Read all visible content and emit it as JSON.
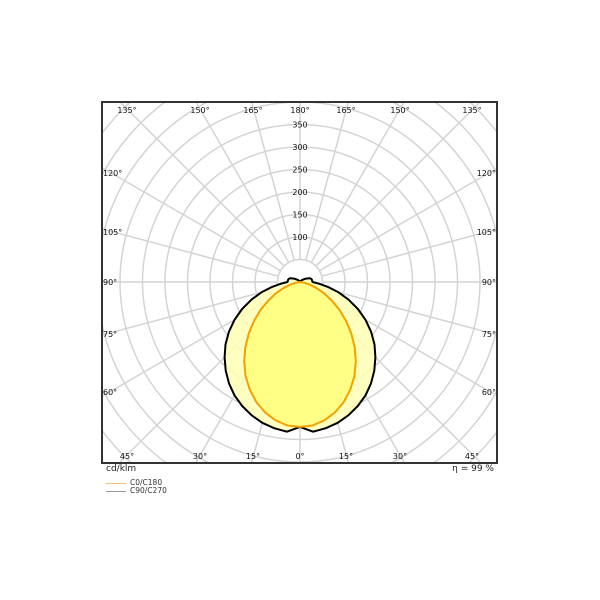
{
  "chart_data": {
    "type": "polar",
    "unit_label": "cd/klm",
    "efficiency_label": "η = 99 %",
    "radial_ticks": [
      100,
      150,
      200,
      250,
      300,
      350
    ],
    "radial_grid_step": 50,
    "angle_grid_step": 15,
    "angle_labels": {
      "bottom": [
        "45°",
        "30°",
        "15°",
        "0°",
        "15°",
        "30°",
        "45°"
      ],
      "sides": [
        "60°",
        "75°",
        "90°",
        "105°",
        "120°"
      ],
      "top": [
        "135°",
        "150°",
        "165°",
        "180°",
        "165°",
        "150°",
        "135°"
      ]
    },
    "series": [
      {
        "name": "C90/C270",
        "color": "#000000",
        "legend_color": "#999999",
        "fill": "#ffffb4",
        "angles": [
          0,
          5,
          10,
          15,
          20,
          25,
          30,
          35,
          40,
          45,
          50,
          55,
          60,
          65,
          70,
          75,
          80,
          85,
          90,
          95,
          100,
          105,
          110,
          120,
          135,
          150,
          165,
          180
        ],
        "values": [
          322,
          334,
          330,
          324,
          315,
          304,
          291,
          275,
          257,
          237,
          216,
          193,
          168,
          142,
          115,
          89,
          63,
          42,
          28,
          27,
          27,
          26,
          24,
          15,
          6,
          2,
          0,
          0
        ]
      },
      {
        "name": "C0/C180",
        "color": "#f5a000",
        "legend_color": "#f5c070",
        "fill": "#ffff80",
        "angles": [
          0,
          5,
          10,
          15,
          20,
          25,
          30,
          35,
          40,
          45,
          50,
          55,
          60,
          65,
          70,
          75,
          80,
          85,
          90
        ],
        "values": [
          322,
          320,
          312,
          300,
          284,
          264,
          242,
          216,
          189,
          161,
          133,
          106,
          80,
          58,
          38,
          22,
          10,
          2,
          0
        ]
      }
    ],
    "grid": true,
    "legend_position": "bottom-left"
  }
}
